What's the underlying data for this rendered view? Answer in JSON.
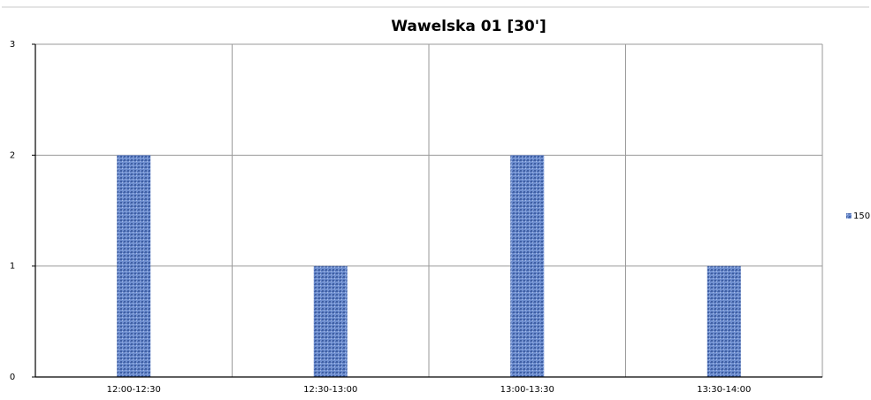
{
  "chart_data": {
    "type": "bar",
    "title": "Wawelska 01 [30']",
    "xlabel": "",
    "ylabel": "",
    "categories": [
      "12:00-12:30",
      "12:30-13:00",
      "13:00-13:30",
      "13:30-14:00"
    ],
    "series": [
      {
        "name": "150",
        "values": [
          2,
          1,
          2,
          1
        ]
      }
    ],
    "ylim": [
      0,
      3
    ],
    "yticks": [
      "0",
      "1",
      "2",
      "3"
    ],
    "grid": true,
    "legend_position": "right",
    "colors": {
      "bar": "#5b7fc4",
      "bar_texture": "#3a5a9e",
      "grid": "#9a9a9a",
      "axis": "#000000",
      "frame": "#c8c8c8"
    }
  }
}
